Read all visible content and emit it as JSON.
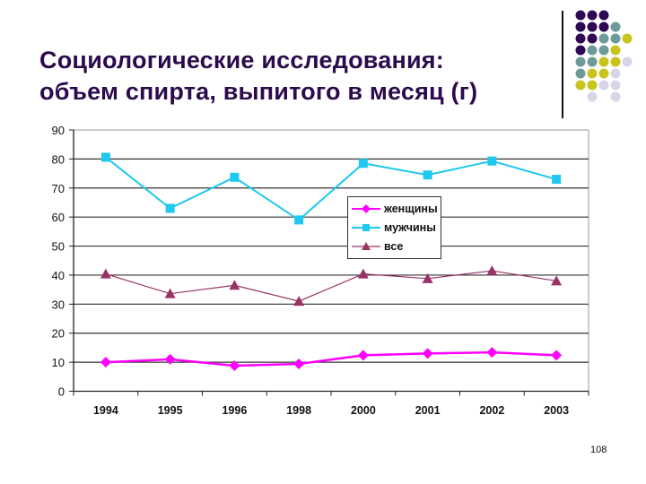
{
  "slide": {
    "title_line1": "Социологические исследования:",
    "title_line2": "объем спирта, выпитого в месяц (г)",
    "page_number": "108"
  },
  "decor": {
    "colors": {
      "P": "#2e0854",
      "T": "#6f9a9a",
      "Y": "#c8c41c",
      "L": "#d6d6e8"
    },
    "grid": [
      "PPP..",
      "PPPT.",
      "PPTTY",
      "PTTY.",
      "TTYYL",
      "TYYL.",
      "YYLL.",
      ".L.L."
    ]
  },
  "legend": {
    "items": [
      {
        "label": "женщины",
        "color": "#ff00ff",
        "marker": "diamond"
      },
      {
        "label": "мужчины",
        "color": "#1ec8ee",
        "marker": "square"
      },
      {
        "label": "все",
        "color": "#993366",
        "marker": "triangle"
      }
    ]
  },
  "chart_data": {
    "type": "line",
    "title": "Социологические исследования: объем спирта, выпитого в месяц (г)",
    "xlabel": "",
    "ylabel": "",
    "categories": [
      "1994",
      "1995",
      "1996",
      "1998",
      "2000",
      "2001",
      "2002",
      "2003"
    ],
    "series": [
      {
        "name": "женщины",
        "color": "#ff00ff",
        "marker": "diamond",
        "values": [
          10,
          11,
          8.8,
          9.4,
          12.4,
          13,
          13.4,
          12.4
        ]
      },
      {
        "name": "мужчины",
        "color": "#1ec8ee",
        "marker": "square",
        "values": [
          80.6,
          63,
          73.7,
          59,
          78.5,
          74.5,
          79.3,
          73
        ]
      },
      {
        "name": "все",
        "color": "#993366",
        "marker": "triangle",
        "values": [
          40.4,
          33.6,
          36.5,
          31,
          40.4,
          38.8,
          41.5,
          38
        ]
      }
    ],
    "ylim": [
      0,
      90
    ],
    "yticks": [
      0,
      10,
      20,
      30,
      40,
      50,
      60,
      70,
      80,
      90
    ],
    "grid": true,
    "legend_position": "inside-center-right"
  }
}
